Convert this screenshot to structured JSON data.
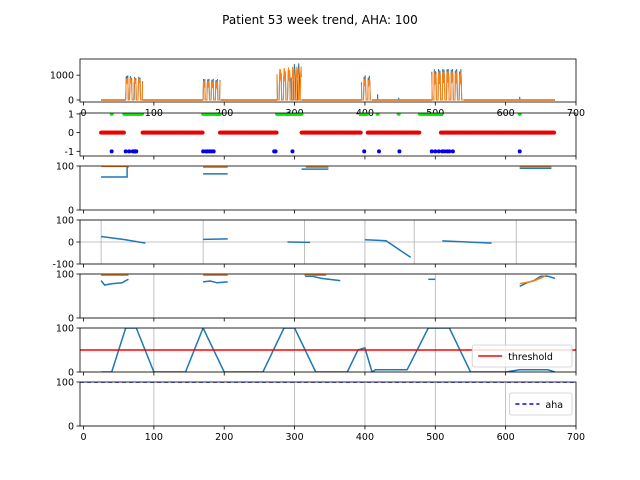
{
  "chart_data": {
    "type": "line",
    "title": "Patient 53 week trend, AHA: 100",
    "xlim": [
      -5,
      700
    ],
    "x_ticks": [
      0,
      100,
      200,
      300,
      400,
      500,
      600,
      700
    ],
    "panels": [
      {
        "id": "activity",
        "ylim": [
          -80,
          1650
        ],
        "y_ticks": [
          0,
          1000
        ],
        "x_ticks": [
          0,
          100,
          200,
          300,
          400,
          500,
          600,
          700
        ],
        "grid": false,
        "series": [
          {
            "color": "#1f77b4",
            "style": "bursts",
            "segments": [
              {
                "x0": 25,
                "x1": 60,
                "base": 0
              },
              {
                "x0": 60,
                "x1": 72,
                "base": 700,
                "peak": 1000
              },
              {
                "x0": 72,
                "x1": 84,
                "base": 700,
                "peak": 950
              },
              {
                "x0": 84,
                "x1": 170,
                "base": 0
              },
              {
                "x0": 170,
                "x1": 195,
                "base": 500,
                "peak": 850
              },
              {
                "x0": 195,
                "x1": 275,
                "base": 0
              },
              {
                "x0": 275,
                "x1": 295,
                "base": 800,
                "peak": 1250
              },
              {
                "x0": 295,
                "x1": 310,
                "base": 900,
                "peak": 1480
              },
              {
                "x0": 310,
                "x1": 395,
                "base": 0
              },
              {
                "x0": 395,
                "x1": 410,
                "base": 600,
                "peak": 1000
              },
              {
                "x0": 410,
                "x1": 495,
                "base": 0
              },
              {
                "x0": 495,
                "x1": 540,
                "base": 650,
                "peak": 1250
              },
              {
                "x0": 540,
                "x1": 670,
                "base": 0
              }
            ],
            "spikes": [
              {
                "x": 418,
                "y": 230
              },
              {
                "x": 448,
                "y": 90
              },
              {
                "x": 620,
                "y": 130
              }
            ]
          },
          {
            "color": "#ff7f0e",
            "style": "bursts",
            "segments": [
              {
                "x0": 25,
                "x1": 60,
                "base": 0
              },
              {
                "x0": 60,
                "x1": 84,
                "base": 650,
                "peak": 900
              },
              {
                "x0": 84,
                "x1": 170,
                "base": 0
              },
              {
                "x0": 170,
                "x1": 195,
                "base": 450,
                "peak": 780
              },
              {
                "x0": 195,
                "x1": 275,
                "base": 0
              },
              {
                "x0": 275,
                "x1": 310,
                "base": 750,
                "peak": 1350
              },
              {
                "x0": 310,
                "x1": 395,
                "base": 0
              },
              {
                "x0": 395,
                "x1": 410,
                "base": 550,
                "peak": 900
              },
              {
                "x0": 410,
                "x1": 495,
                "base": 0
              },
              {
                "x0": 495,
                "x1": 540,
                "base": 600,
                "peak": 1150
              },
              {
                "x0": 540,
                "x1": 670,
                "base": 0
              }
            ]
          }
        ]
      },
      {
        "id": "state",
        "ylim": [
          -1.25,
          1.05
        ],
        "y_ticks": [
          -1,
          0,
          1
        ],
        "grid": false,
        "series": [
          {
            "color": "#00ee00",
            "value": 1,
            "ranges": [
              [
                58,
                84
              ],
              [
                170,
                194
              ],
              [
                275,
                310
              ],
              [
                395,
                404
              ],
              [
                478,
                508
              ]
            ],
            "points": [
              40,
              418,
              448,
              620
            ]
          },
          {
            "color": "#ee0000",
            "value": 0,
            "ranges": [
              [
                25,
                58
              ],
              [
                84,
                170
              ],
              [
                194,
                275
              ],
              [
                310,
                395
              ],
              [
                404,
                478
              ],
              [
                508,
                670
              ]
            ]
          },
          {
            "color": "#0000ee",
            "value": -1,
            "points": [
              40,
              60,
              65,
              70,
              72,
              73,
              74,
              75,
              170,
              174,
              176,
              179,
              182,
              185,
              271,
              273,
              297,
              399,
              420,
              449,
              495,
              500,
              505,
              510,
              513,
              517,
              520,
              525,
              620
            ]
          }
        ]
      },
      {
        "id": "level",
        "ylim": [
          0,
          100
        ],
        "y_ticks": [
          0,
          100
        ],
        "grid": false,
        "series": [
          {
            "color": "#1f77b4",
            "segments": [
              [
                [
                  25,
                  75
                ],
                [
                  62,
                  75
                ],
                [
                  62,
                  97
                ],
                [
                  64,
                  97
                ]
              ],
              [
                [
                  170,
                  82
                ],
                [
                  205,
                  82
                ]
              ],
              [
                [
                  310,
                  93
                ],
                [
                  348,
                  93
                ]
              ],
              [
                [
                  620,
                  95
                ],
                [
                  665,
                  95
                ]
              ]
            ]
          },
          {
            "color": "#ff7f0e",
            "segments": [
              [
                [
                  25,
                  99
                ],
                [
                  64,
                  99
                ]
              ],
              [
                [
                  170,
                  97
                ],
                [
                  205,
                  97
                ]
              ],
              [
                [
                  316,
                  97
                ],
                [
                  348,
                  97
                ]
              ],
              [
                [
                  620,
                  97
                ],
                [
                  665,
                  97
                ]
              ]
            ]
          }
        ]
      },
      {
        "id": "change",
        "ylim": [
          -100,
          100
        ],
        "y_ticks": [
          -100,
          0,
          100
        ],
        "grid": true,
        "vgrid_x": [
          25,
          170,
          314,
          400,
          470,
          615
        ],
        "series": [
          {
            "color": "#1f77b4",
            "segments": [
              [
                [
                  25,
                  25
                ],
                [
                  60,
                  10
                ],
                [
                  88,
                  -5
                ]
              ],
              [
                [
                  170,
                  12
                ],
                [
                  205,
                  14
                ]
              ],
              [
                [
                  290,
                  0
                ],
                [
                  322,
                  -2
                ]
              ],
              [
                [
                  400,
                  10
                ],
                [
                  430,
                  6
                ],
                [
                  465,
                  -70
                ]
              ],
              [
                [
                  510,
                  5
                ],
                [
                  580,
                  -5
                ]
              ]
            ]
          }
        ]
      },
      {
        "id": "score",
        "ylim": [
          0,
          100
        ],
        "y_ticks": [
          0,
          100
        ],
        "grid": true,
        "vgrid_x": [
          100,
          300,
          400,
          500,
          600
        ],
        "series": [
          {
            "color": "#1f77b4",
            "segments": [
              [
                [
                  25,
                  85
                ],
                [
                  30,
                  75
                ],
                [
                  40,
                  78
                ],
                [
                  55,
                  80
                ],
                [
                  60,
                  85
                ],
                [
                  64,
                  88
                ]
              ],
              [
                [
                  170,
                  82
                ],
                [
                  180,
                  84
                ],
                [
                  190,
                  80
                ],
                [
                  205,
                  82
                ]
              ],
              [
                [
                  315,
                  95
                ],
                [
                  325,
                  95
                ],
                [
                  338,
                  90
                ],
                [
                  365,
                  85
                ]
              ],
              [
                [
                  490,
                  88
                ],
                [
                  500,
                  88
                ]
              ],
              [
                [
                  620,
                  72
                ],
                [
                  630,
                  80
                ],
                [
                  640,
                  85
                ],
                [
                  650,
                  95
                ],
                [
                  660,
                  95
                ],
                [
                  670,
                  90
                ]
              ]
            ]
          },
          {
            "color": "#ff7f0e",
            "segments": [
              [
                [
                  25,
                  97
                ],
                [
                  64,
                  97
                ]
              ],
              [
                [
                  170,
                  97
                ],
                [
                  205,
                  97
                ]
              ],
              [
                [
                  314,
                  97
                ],
                [
                  345,
                  97
                ]
              ],
              [
                [
                  620,
                  78
                ],
                [
                  640,
                  84
                ],
                [
                  652,
                  92
                ],
                [
                  658,
                  97
                ]
              ]
            ]
          }
        ]
      },
      {
        "id": "risk",
        "ylim": [
          0,
          100
        ],
        "y_ticks": [
          0,
          100
        ],
        "grid": true,
        "vgrid_x": [
          100,
          300,
          400,
          500,
          600
        ],
        "legend": {
          "label": "threshold",
          "color": "#ff0000",
          "style": "solid",
          "position": "lower-right"
        },
        "threshold": 50,
        "series": [
          {
            "color": "#1f77b4",
            "points": [
              [
                25,
                0
              ],
              [
                40,
                0
              ],
              [
                60,
                100
              ],
              [
                75,
                100
              ],
              [
                100,
                0
              ],
              [
                145,
                0
              ],
              [
                170,
                100
              ],
              [
                200,
                0
              ],
              [
                255,
                0
              ],
              [
                285,
                100
              ],
              [
                300,
                100
              ],
              [
                330,
                0
              ],
              [
                375,
                0
              ],
              [
                390,
                50
              ],
              [
                400,
                55
              ],
              [
                410,
                0
              ],
              [
                415,
                5
              ],
              [
                460,
                5
              ],
              [
                490,
                100
              ],
              [
                520,
                100
              ],
              [
                550,
                0
              ],
              [
                600,
                0
              ],
              [
                620,
                5
              ],
              [
                660,
                5
              ],
              [
                670,
                0
              ]
            ]
          },
          {
            "color": "#ff0000",
            "points": [
              [
                -5,
                50
              ],
              [
                700,
                50
              ]
            ]
          }
        ]
      },
      {
        "id": "aha",
        "ylim": [
          0,
          100
        ],
        "y_ticks": [
          0,
          100
        ],
        "x_ticks": [
          0,
          100,
          200,
          300,
          400,
          500,
          600,
          700
        ],
        "grid": true,
        "vgrid_x": [
          100,
          300,
          400,
          500,
          600
        ],
        "legend": {
          "label": "aha",
          "color": "#0000ff",
          "style": "dashed",
          "position": "right"
        },
        "series": [
          {
            "color": "#0000ff",
            "style": "dashed",
            "points": [
              [
                -5,
                100
              ],
              [
                700,
                100
              ]
            ]
          }
        ]
      }
    ]
  }
}
